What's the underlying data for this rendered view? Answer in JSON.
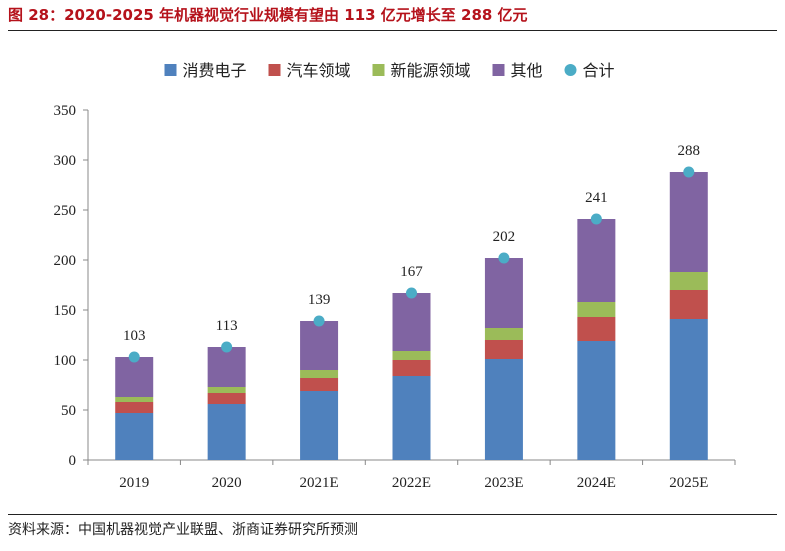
{
  "header": {
    "title": "图 28：2020-2025 年机器视觉行业规模有望由 113 亿元增长至 288 亿元"
  },
  "footer": {
    "source": "资料来源：中国机器视觉产业联盟、浙商证券研究所预测"
  },
  "chart_data": {
    "type": "bar",
    "stacked": true,
    "title": "2020-2025 年机器视觉行业规模有望由 113 亿元增长至 288 亿元",
    "xlabel": "",
    "ylabel": "",
    "ylim": [
      0,
      350
    ],
    "yticks": [
      "0",
      "50",
      "100",
      "150",
      "200",
      "250",
      "300",
      "350"
    ],
    "categories": [
      "2019",
      "2020",
      "2021E",
      "2022E",
      "2023E",
      "2024E",
      "2025E"
    ],
    "series": [
      {
        "name": "消费电子",
        "color": "#4f81bd",
        "values": [
          47,
          56,
          69,
          84,
          101,
          119,
          141
        ]
      },
      {
        "name": "汽车领域",
        "color": "#c0504d",
        "values": [
          11,
          11,
          13,
          16,
          19,
          24,
          29
        ]
      },
      {
        "name": "新能源领域",
        "color": "#9bbb59",
        "values": [
          5,
          6,
          8,
          9,
          12,
          15,
          18
        ]
      },
      {
        "name": "其他",
        "color": "#8064a2",
        "values": [
          40,
          40,
          49,
          58,
          70,
          83,
          100
        ]
      }
    ],
    "total": {
      "name": "合计",
      "color": "#4bacc6",
      "values": [
        103,
        113,
        139,
        167,
        202,
        241,
        288
      ],
      "labels": [
        "103",
        "113",
        "139",
        "167",
        "202",
        "241",
        "288"
      ]
    },
    "legend": "top-center",
    "grid": false
  }
}
